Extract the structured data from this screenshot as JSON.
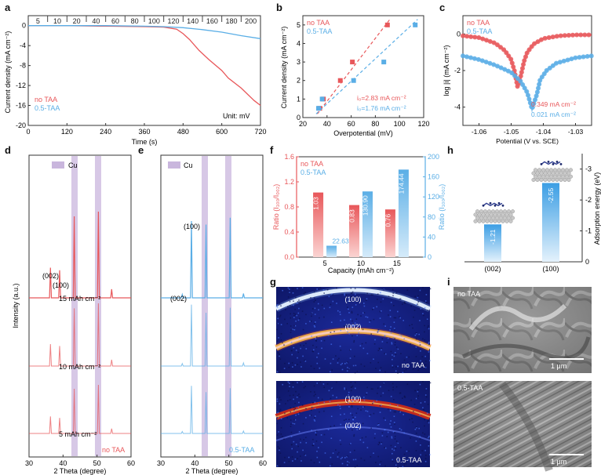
{
  "colors": {
    "no_taa": "#e8575a",
    "taa": "#5aaee6",
    "cu_band": "#c9b6dd",
    "axis": "#333333",
    "dark": "#1c1c1c"
  },
  "panel_labels": [
    "a",
    "b",
    "c",
    "d",
    "e",
    "f",
    "g",
    "h",
    "i"
  ],
  "legend": {
    "no_taa": "no TAA",
    "taa": "0.5-TAA",
    "cu": "Cu"
  },
  "panel_a": {
    "xlabel": "Time (s)",
    "ylabel": "Current density (mA cm⁻²)",
    "unit_note": "Unit: mV",
    "xticks": [
      "0",
      "120",
      "240",
      "360",
      "480",
      "600",
      "720"
    ],
    "yticks": [
      "0",
      "-4",
      "-8",
      "-12",
      "-16",
      "-20"
    ],
    "step_labels": [
      "5",
      "10",
      "20",
      "40",
      "60",
      "80",
      "100",
      "120",
      "140",
      "160",
      "180",
      "200"
    ]
  },
  "panel_b": {
    "xlabel": "Overpotential (mV)",
    "ylabel": "Current density (mA cm⁻²)",
    "xticks": [
      "20",
      "40",
      "60",
      "80",
      "100",
      "120"
    ],
    "yticks": [
      "0",
      "1",
      "2",
      "3",
      "4",
      "5"
    ],
    "i0_no_taa": "i₀=2.83 mA cm⁻²",
    "i0_taa": "i₀=1.76 mA cm⁻²"
  },
  "panel_c": {
    "xlabel": "Potential (V vs. SCE)",
    "ylabel": "log |i| (mA cm⁻²)",
    "xticks": [
      "-1.06",
      "-1.05",
      "-1.04",
      "-1.03"
    ],
    "yticks": [
      "0",
      "-2",
      "-4"
    ],
    "i_no_taa": "0.349 mA cm⁻²",
    "i_taa": "0.021 mA cm⁻²"
  },
  "panel_d": {
    "xlabel": "2 Theta (degree)",
    "ylabel": "Intensity (a.u.)",
    "xticks": [
      "30",
      "40",
      "50",
      "60"
    ],
    "peak_002": "(002)",
    "peak_100": "(100)",
    "capacities": [
      "15 mAh cm⁻²",
      "10 mAh cm⁻²",
      "5 mAh cm⁻²"
    ],
    "sample": "no TAA"
  },
  "panel_e": {
    "xlabel": "2 Theta (degree)",
    "xticks": [
      "30",
      "40",
      "50",
      "60"
    ],
    "peak_002": "(002)",
    "peak_100": "(100)",
    "sample": "0.5-TAA"
  },
  "panel_f": {
    "xlabel": "Capacity (mAh cm⁻²)",
    "ylabel_left": "Ratio (I₁₀₀/I₀₀₂)",
    "ylabel_right": "Ratio (I₁₀₀/I₀₀₂)",
    "categories": [
      "5",
      "10",
      "15"
    ],
    "yticks_left": [
      "0.0",
      "0.4",
      "0.8",
      "1.2",
      "1.6"
    ],
    "yticks_right": [
      "0",
      "40",
      "80",
      "120",
      "160",
      "200"
    ],
    "no_taa_labels": [
      "1.03",
      "0.83",
      "0.76"
    ],
    "taa_labels": [
      "22.63",
      "130.90",
      "174.44"
    ]
  },
  "panel_g": {
    "ring_100": "(100)",
    "ring_002": "(002)",
    "top_sample": "no TAA",
    "bottom_sample": "0.5-TAA"
  },
  "panel_h": {
    "ylabel": "Adsorption energy (eV)",
    "categories": [
      "(002)",
      "(100)"
    ],
    "bar_labels": [
      "-1.21",
      "-2.55"
    ],
    "yticks": [
      "0",
      "-1",
      "-2",
      "-3"
    ]
  },
  "panel_i": {
    "top_sample": "no TAA",
    "bottom_sample": "0.5-TAA",
    "scale": "1 μm"
  },
  "chart_data": [
    {
      "type": "line",
      "title": "a",
      "xlabel": "Time (s)",
      "ylabel": "Current density (mA cm⁻²)",
      "xlim": [
        0,
        720
      ],
      "ylim": [
        -20,
        2
      ],
      "series": [
        {
          "name": "no TAA",
          "x": [
            0,
            120,
            240,
            360,
            420,
            460,
            480,
            500,
            530,
            560,
            600,
            620,
            660,
            700,
            720
          ],
          "y": [
            0,
            0,
            -0.1,
            -0.2,
            -0.3,
            -0.7,
            -1.6,
            -2.8,
            -5.0,
            -6.8,
            -9.0,
            -10.5,
            -12.5,
            -15.0,
            -16.0
          ]
        },
        {
          "name": "0.5-TAA",
          "x": [
            0,
            120,
            240,
            360,
            420,
            480,
            540,
            600,
            660,
            720
          ],
          "y": [
            0,
            0,
            0,
            -0.1,
            -0.2,
            -0.4,
            -0.8,
            -1.3,
            -2.0,
            -2.6
          ]
        }
      ]
    },
    {
      "type": "scatter",
      "title": "b",
      "xlabel": "Overpotential (mV)",
      "ylabel": "Current density (mA cm⁻²)",
      "xlim": [
        20,
        120
      ],
      "ylim": [
        0,
        5.5
      ],
      "series": [
        {
          "name": "no TAA",
          "x": [
            34,
            37,
            51,
            61,
            90
          ],
          "y": [
            0.5,
            1.0,
            2.0,
            3.0,
            5.0
          ]
        },
        {
          "name": "0.5-TAA",
          "x": [
            33,
            36,
            62,
            87,
            113
          ],
          "y": [
            0.5,
            1.0,
            2.0,
            3.0,
            5.0
          ]
        }
      ]
    },
    {
      "type": "line",
      "title": "c",
      "xlabel": "Potential (V vs. SCE)",
      "ylabel": "log |i| (mA cm⁻²)",
      "xlim": [
        -1.065,
        -1.025
      ],
      "ylim": [
        -5,
        1
      ],
      "series": [
        {
          "name": "no TAA",
          "x": [
            -1.065,
            -1.06,
            -1.055,
            -1.052,
            -1.05,
            -1.049,
            -1.048,
            -1.047,
            -1.046,
            -1.045,
            -1.043,
            -1.04,
            -1.035,
            -1.03,
            -1.025
          ],
          "y": [
            -0.1,
            -0.2,
            -0.5,
            -0.9,
            -1.4,
            -2.0,
            -2.9,
            -2.3,
            -1.5,
            -1.0,
            -0.55,
            -0.25,
            -0.1,
            -0.05,
            -0.05
          ]
        },
        {
          "name": "0.5-TAA",
          "x": [
            -1.065,
            -1.06,
            -1.055,
            -1.05,
            -1.047,
            -1.045,
            -1.0435,
            -1.042,
            -1.041,
            -1.039,
            -1.036,
            -1.03,
            -1.025
          ],
          "y": [
            -1.2,
            -1.4,
            -1.7,
            -2.1,
            -2.6,
            -3.2,
            -4.1,
            -3.3,
            -2.5,
            -2.0,
            -1.6,
            -1.3,
            -1.2
          ]
        }
      ]
    },
    {
      "type": "bar",
      "title": "f",
      "categories": [
        "5",
        "10",
        "15"
      ],
      "xlabel": "Capacity (mAh cm⁻²)",
      "series": [
        {
          "name": "no TAA",
          "axis": "left",
          "values": [
            1.03,
            0.83,
            0.76
          ],
          "ylim": [
            0,
            1.6
          ]
        },
        {
          "name": "0.5-TAA",
          "axis": "right",
          "values": [
            22.63,
            130.9,
            174.44
          ],
          "ylim": [
            0,
            200
          ]
        }
      ]
    },
    {
      "type": "bar",
      "title": "h",
      "categories": [
        "(002)",
        "(100)"
      ],
      "values": [
        -1.21,
        -2.55
      ],
      "ylabel": "Adsorption energy (eV)",
      "ylim": [
        0,
        -3.5
      ]
    }
  ]
}
